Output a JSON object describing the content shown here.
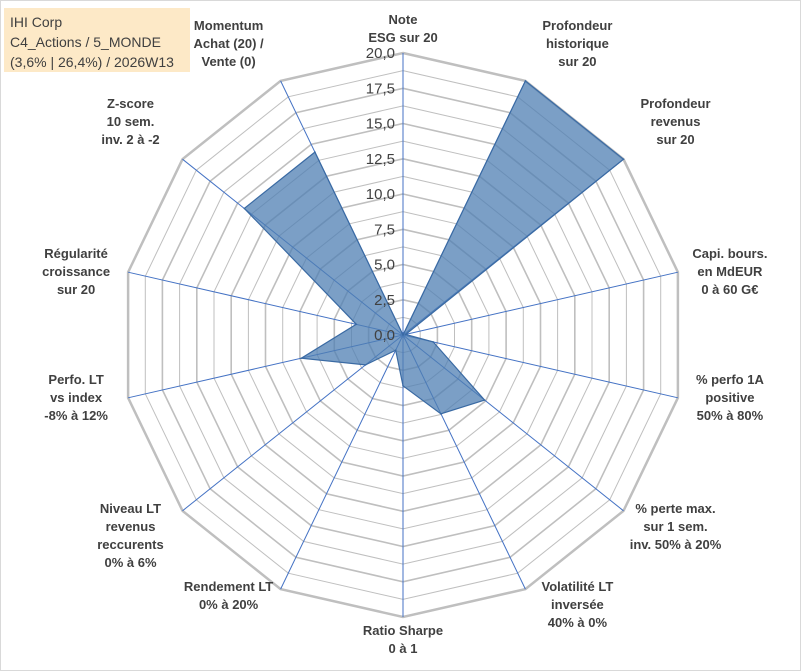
{
  "info_box": {
    "line1": "IHI Corp",
    "line2": "C4_Actions / 5_MONDE",
    "line3": "(3,6% | 26,4%) / 2026W13"
  },
  "chart_data": {
    "type": "radar",
    "rlim": [
      0,
      20
    ],
    "grid": true,
    "tick_labels": [
      "0,0",
      "2,5",
      "5,0",
      "7,5",
      "10,0",
      "12,5",
      "15,0",
      "17,5",
      "20,0"
    ],
    "categories": [
      [
        "Note",
        "ESG sur 20"
      ],
      [
        "Profondeur",
        "historique",
        "sur 20"
      ],
      [
        "Profondeur",
        "revenus",
        "sur 20"
      ],
      [
        "Capi. bours.",
        "en MdEUR",
        "0 à 60 G€"
      ],
      [
        "% perfo 1A",
        "positive",
        "50% à 80%"
      ],
      [
        "% perte max.",
        "sur 1 sem.",
        "inv. 50% à 20%"
      ],
      [
        "Volatilité LT",
        "inversée",
        "40% à 0%"
      ],
      [
        "Ratio Sharpe",
        "0 à 1"
      ],
      [
        "Rendement LT",
        "0% à 20%"
      ],
      [
        "Niveau LT",
        "revenus",
        "reccurents",
        "0% à 6%"
      ],
      [
        "Perfo. LT",
        "vs index",
        "-8% à 12%"
      ],
      [
        "Régularité",
        "croissance",
        "sur 20"
      ],
      [
        "Z-score",
        "10 sem.",
        "inv. 2 à -2"
      ],
      [
        "Momentum",
        "Achat (20) /",
        "Vente (0)"
      ]
    ],
    "series": [
      {
        "values": [
          0,
          20,
          20,
          0.2,
          2.2,
          7.4,
          6.2,
          3.6,
          1.2,
          3.4,
          7.4,
          3.4,
          14.4,
          14.4
        ],
        "fill": "#4f7fb3",
        "stroke": "#3a6aa3"
      }
    ],
    "grid_color": "#bfbfbf",
    "axis_color": "#4472c4"
  }
}
